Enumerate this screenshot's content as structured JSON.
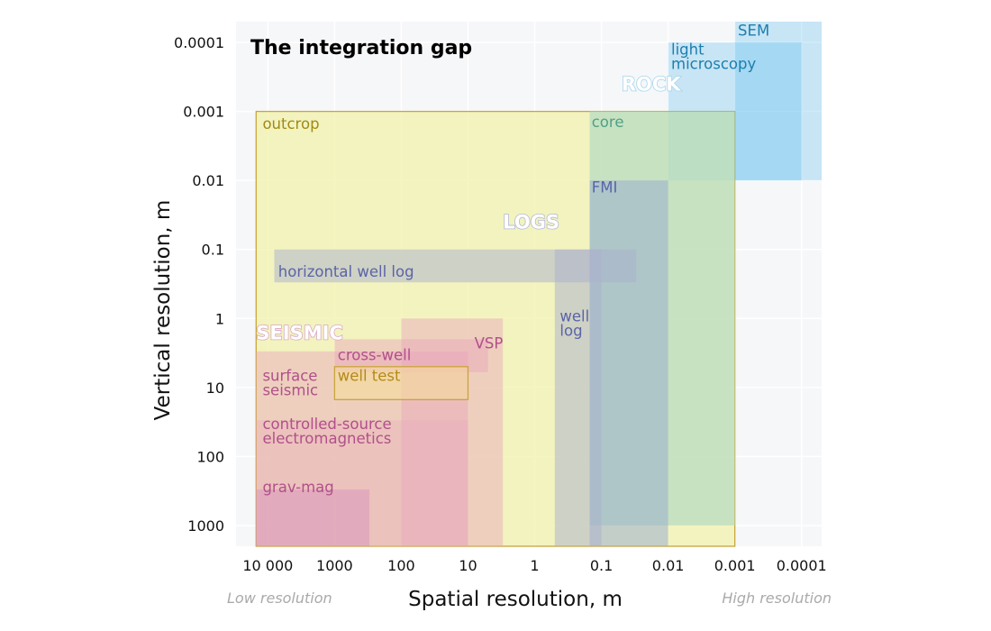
{
  "chart_data": {
    "type": "range-rectangles",
    "title": "The integration gap",
    "xlabel": "Spatial resolution, m",
    "ylabel": "Vertical resolution, m",
    "x_axis": {
      "scale": "log",
      "direction": "decreasing",
      "range": [
        30000,
        5e-05
      ],
      "ticks": [
        10000,
        1000,
        100,
        10,
        1,
        0.1,
        0.01,
        0.001,
        0.0001
      ],
      "tick_labels": [
        "10 000",
        "1000",
        "100",
        "10",
        "1",
        "0.1",
        "0.01",
        "0.001",
        "0.0001"
      ]
    },
    "y_axis": {
      "scale": "log",
      "direction": "decreasing",
      "range": [
        2000,
        5e-05
      ],
      "ticks": [
        0.0001,
        0.001,
        0.01,
        0.1,
        1,
        10,
        100,
        1000
      ],
      "tick_labels": [
        "0.0001",
        "0.001",
        "0.01",
        "0.1",
        "1",
        "10",
        "100",
        "1000"
      ]
    },
    "x_annotations": {
      "low": "Low resolution",
      "high": "High resolution"
    },
    "groups": [
      {
        "name": "ROCK",
        "color": "#a6d4ea",
        "x": 0.05,
        "y": 0.0005
      },
      {
        "name": "LOGS",
        "color": "#b4b8d4",
        "x": 3,
        "y": 0.05
      },
      {
        "name": "SEISMIC",
        "color": "#d8a8c4",
        "x": 15000,
        "y": 2
      }
    ],
    "series": [
      {
        "name": "outcrop",
        "fill": "#f1f1a8",
        "opacity": 0.72,
        "border": "#c9a53a",
        "label_color": "#a08a15",
        "label_x": 12000,
        "label_y": 0.0018,
        "x_range": [
          15000,
          0.001
        ],
        "y_range": [
          2000,
          0.001
        ]
      },
      {
        "name": "SEM",
        "fill": "#4fb8ee",
        "opacity": 0.28,
        "border": null,
        "label_color": "#1d7eae",
        "label_x": 0.0009,
        "label_y": 8e-05,
        "x_range": [
          0.001,
          5e-05
        ],
        "y_range": [
          0.01,
          5e-05
        ]
      },
      {
        "name": "light microscopy",
        "fill": "#4fb8ee",
        "opacity": 0.28,
        "border": null,
        "label_color": "#1d7eae",
        "label_x": 0.009,
        "label_y": 0.00015,
        "x_range": [
          0.01,
          0.0001
        ],
        "y_range": [
          0.01,
          0.0001
        ]
      },
      {
        "name": "core",
        "fill": "#b8dcc0",
        "opacity": 0.75,
        "border": null,
        "label_color": "#4fa08a",
        "label_x": 0.14,
        "label_y": 0.0017,
        "x_range": [
          0.15,
          0.001
        ],
        "y_range": [
          1000,
          0.001
        ]
      },
      {
        "name": "FMI",
        "fill": "#9aaed0",
        "opacity": 0.55,
        "border": null,
        "label_color": "#5a64a8",
        "label_x": 0.14,
        "label_y": 0.015,
        "x_range": [
          0.15,
          0.01
        ],
        "y_range": [
          2000,
          0.01
        ]
      },
      {
        "name": "horizontal well log",
        "fill": "#a9b0cc",
        "opacity": 0.5,
        "border": null,
        "label_color": "#5a64a8",
        "label_x": 7000,
        "label_y": 0.25,
        "x_range": [
          8000,
          0.03
        ],
        "y_range": [
          0.3,
          0.1
        ]
      },
      {
        "name": "well log",
        "fill": "#a9b0cc",
        "opacity": 0.5,
        "border": null,
        "label_color": "#5a64a8",
        "label_x": 0.42,
        "label_y": 1.1,
        "x_range": [
          0.5,
          0.1
        ],
        "y_range": [
          2000,
          0.1
        ]
      },
      {
        "name": "VSP",
        "fill": "#e8a4bd",
        "opacity": 0.45,
        "border": null,
        "label_color": "#b0508a",
        "label_x": 8,
        "label_y": 2.7,
        "x_range": [
          100,
          3
        ],
        "y_range": [
          2000,
          1
        ]
      },
      {
        "name": "cross-well",
        "fill": "#e8a4bd",
        "opacity": 0.45,
        "border": null,
        "label_color": "#b0508a",
        "label_x": 900,
        "label_y": 4,
        "x_range": [
          1000,
          5
        ],
        "y_range": [
          6,
          2
        ]
      },
      {
        "name": "surface seismic",
        "fill": "#e8a4bd",
        "opacity": 0.45,
        "border": null,
        "label_color": "#b0508a",
        "label_x": 12000,
        "label_y": 8,
        "x_range": [
          15000,
          10
        ],
        "y_range": [
          2000,
          3
        ]
      },
      {
        "name": "well test",
        "fill": "#f5dc9a",
        "opacity": 0.6,
        "border": "#c9a53a",
        "label_color": "#b48a18",
        "label_x": 900,
        "label_y": 8,
        "x_range": [
          1000,
          10
        ],
        "y_range": [
          15,
          5
        ]
      },
      {
        "name": "controlled-source electromagnetics",
        "fill": "#e8a4bd",
        "opacity": 0.3,
        "border": null,
        "label_color": "#b0508a",
        "label_x": 12000,
        "label_y": 40,
        "x_range": [
          15000,
          10
        ],
        "y_range": [
          2000,
          30
        ]
      },
      {
        "name": "grav-mag",
        "fill": "#d890bd",
        "opacity": 0.45,
        "border": null,
        "label_color": "#b0508a",
        "label_x": 12000,
        "label_y": 330,
        "x_range": [
          15000,
          300
        ],
        "y_range": [
          2000,
          300
        ]
      }
    ]
  }
}
